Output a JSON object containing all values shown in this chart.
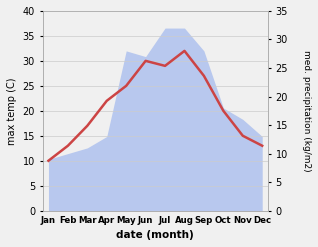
{
  "months": [
    "Jan",
    "Feb",
    "Mar",
    "Apr",
    "May",
    "Jun",
    "Jul",
    "Aug",
    "Sep",
    "Oct",
    "Nov",
    "Dec"
  ],
  "temperature": [
    10,
    13,
    17,
    22,
    25,
    30,
    29,
    32,
    27,
    20,
    15,
    13
  ],
  "precipitation": [
    9,
    10,
    11,
    13,
    28,
    27,
    32,
    32,
    28,
    18,
    16,
    13
  ],
  "temp_color": "#cc4444",
  "precip_color": "#b8c8ee",
  "ylim_left": [
    0,
    40
  ],
  "ylim_right": [
    0,
    35
  ],
  "xlabel": "date (month)",
  "ylabel_left": "max temp (C)",
  "ylabel_right": "med. precipitation (kg/m2)",
  "bg_color": "#f0f0f0",
  "grid_color": "#cccccc"
}
